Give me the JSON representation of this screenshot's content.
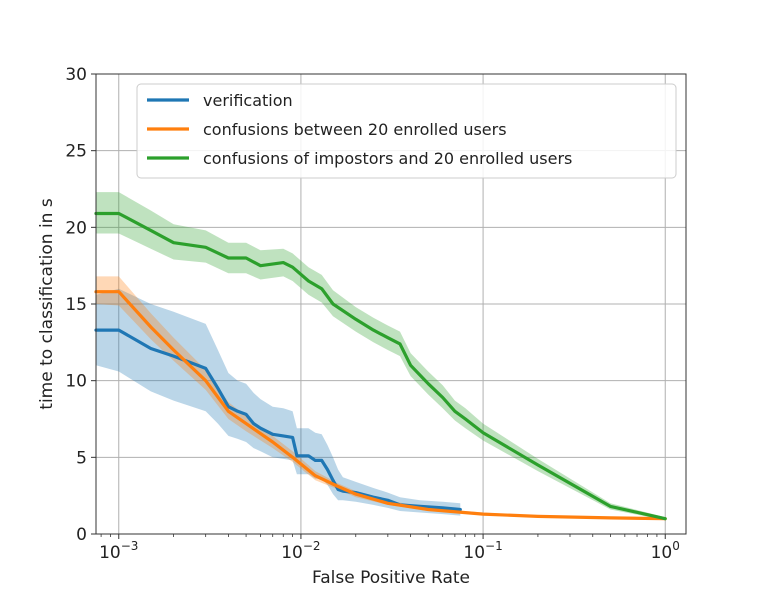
{
  "chart_data": {
    "type": "line",
    "title": "",
    "xlabel": "False Positive Rate",
    "ylabel": "time to classification in s",
    "xscale": "log",
    "xlim": [
      0.00075,
      1.3
    ],
    "ylim": [
      0,
      30
    ],
    "grid": true,
    "legend_position": "top-left",
    "x_ticks": [
      {
        "value": 0.001,
        "base": "10",
        "exp": "−3"
      },
      {
        "value": 0.01,
        "base": "10",
        "exp": "−2"
      },
      {
        "value": 0.1,
        "base": "10",
        "exp": "−1"
      },
      {
        "value": 1,
        "base": "10",
        "exp": "0"
      }
    ],
    "y_ticks": [
      {
        "value": 0,
        "label": "0"
      },
      {
        "value": 5,
        "label": "5"
      },
      {
        "value": 10,
        "label": "10"
      },
      {
        "value": 15,
        "label": "15"
      },
      {
        "value": 20,
        "label": "20"
      },
      {
        "value": 25,
        "label": "25"
      },
      {
        "value": 30,
        "label": "30"
      }
    ],
    "series": [
      {
        "name": "verification",
        "color": "#1f77b4",
        "points": [
          [
            0.00075,
            13.3,
            11.0,
            15.6
          ],
          [
            0.001,
            13.3,
            10.6,
            16.0
          ],
          [
            0.0015,
            12.1,
            9.3,
            15.0
          ],
          [
            0.002,
            11.6,
            8.7,
            14.5
          ],
          [
            0.003,
            10.8,
            8.0,
            13.7
          ],
          [
            0.0035,
            9.5,
            7.2,
            12.0
          ],
          [
            0.004,
            8.3,
            6.4,
            10.5
          ],
          [
            0.0045,
            8.0,
            6.2,
            10.0
          ],
          [
            0.005,
            7.8,
            6.0,
            9.8
          ],
          [
            0.0055,
            7.2,
            5.6,
            9.2
          ],
          [
            0.006,
            6.9,
            5.4,
            8.8
          ],
          [
            0.007,
            6.5,
            5.0,
            8.3
          ],
          [
            0.008,
            6.4,
            4.9,
            8.2
          ],
          [
            0.009,
            6.3,
            4.8,
            8.0
          ],
          [
            0.0095,
            5.1,
            3.9,
            6.9
          ],
          [
            0.011,
            5.1,
            3.9,
            6.9
          ],
          [
            0.012,
            4.8,
            3.6,
            6.6
          ],
          [
            0.013,
            4.8,
            3.6,
            6.5
          ],
          [
            0.014,
            4.2,
            3.2,
            5.8
          ],
          [
            0.015,
            3.5,
            2.6,
            5.0
          ],
          [
            0.016,
            2.9,
            2.2,
            4.2
          ],
          [
            0.017,
            2.8,
            2.2,
            3.7
          ],
          [
            0.02,
            2.7,
            2.1,
            3.4
          ],
          [
            0.025,
            2.4,
            1.9,
            3.0
          ],
          [
            0.03,
            2.2,
            1.7,
            2.7
          ],
          [
            0.035,
            1.9,
            1.5,
            2.4
          ],
          [
            0.045,
            1.8,
            1.4,
            2.2
          ],
          [
            0.06,
            1.7,
            1.3,
            2.1
          ],
          [
            0.075,
            1.6,
            1.2,
            2.0
          ]
        ]
      },
      {
        "name": "confusions between 20 enrolled users",
        "color": "#ff7f0e",
        "points": [
          [
            0.00075,
            15.8,
            15.0,
            16.8
          ],
          [
            0.001,
            15.8,
            14.9,
            16.8
          ],
          [
            0.0015,
            13.5,
            12.7,
            14.4
          ],
          [
            0.002,
            12.0,
            11.3,
            12.8
          ],
          [
            0.003,
            10.0,
            9.4,
            10.7
          ],
          [
            0.004,
            8.0,
            7.5,
            8.6
          ],
          [
            0.005,
            7.2,
            6.7,
            7.7
          ],
          [
            0.007,
            6.0,
            5.6,
            6.4
          ],
          [
            0.009,
            5.0,
            4.7,
            5.4
          ],
          [
            0.012,
            3.8,
            3.5,
            4.1
          ],
          [
            0.016,
            3.1,
            2.9,
            3.3
          ],
          [
            0.02,
            2.6,
            2.4,
            2.8
          ],
          [
            0.03,
            2.0,
            1.9,
            2.2
          ],
          [
            0.05,
            1.6,
            1.5,
            1.7
          ],
          [
            0.1,
            1.3,
            1.25,
            1.4
          ],
          [
            0.2,
            1.15,
            1.1,
            1.2
          ],
          [
            0.5,
            1.05,
            1.0,
            1.1
          ],
          [
            1.0,
            1.0,
            1.0,
            1.0
          ]
        ]
      },
      {
        "name": "confusions of impostors and 20 enrolled users",
        "color": "#2ca02c",
        "points": [
          [
            0.00075,
            20.9,
            19.6,
            22.3
          ],
          [
            0.001,
            20.9,
            19.6,
            22.3
          ],
          [
            0.0015,
            19.8,
            18.6,
            21.1
          ],
          [
            0.002,
            19.0,
            17.9,
            20.2
          ],
          [
            0.003,
            18.7,
            17.7,
            19.8
          ],
          [
            0.004,
            18.0,
            17.0,
            19.0
          ],
          [
            0.005,
            18.0,
            17.0,
            19.0
          ],
          [
            0.006,
            17.5,
            16.6,
            18.5
          ],
          [
            0.008,
            17.7,
            16.8,
            18.6
          ],
          [
            0.009,
            17.4,
            16.5,
            18.3
          ],
          [
            0.011,
            16.5,
            15.6,
            17.4
          ],
          [
            0.013,
            16.0,
            15.1,
            16.9
          ],
          [
            0.015,
            15.0,
            14.2,
            15.9
          ],
          [
            0.02,
            14.0,
            13.2,
            14.8
          ],
          [
            0.025,
            13.3,
            12.5,
            14.1
          ],
          [
            0.03,
            12.8,
            12.0,
            13.6
          ],
          [
            0.035,
            12.4,
            11.6,
            13.2
          ],
          [
            0.04,
            11.0,
            10.3,
            11.8
          ],
          [
            0.05,
            9.8,
            9.1,
            10.6
          ],
          [
            0.06,
            8.9,
            8.2,
            9.7
          ],
          [
            0.07,
            8.0,
            7.4,
            8.7
          ],
          [
            0.08,
            7.5,
            6.9,
            8.2
          ],
          [
            0.1,
            6.6,
            6.1,
            7.2
          ],
          [
            0.2,
            4.5,
            4.1,
            4.9
          ],
          [
            0.5,
            1.8,
            1.6,
            2.0
          ],
          [
            1.0,
            1.0,
            0.9,
            1.1
          ]
        ]
      }
    ]
  }
}
